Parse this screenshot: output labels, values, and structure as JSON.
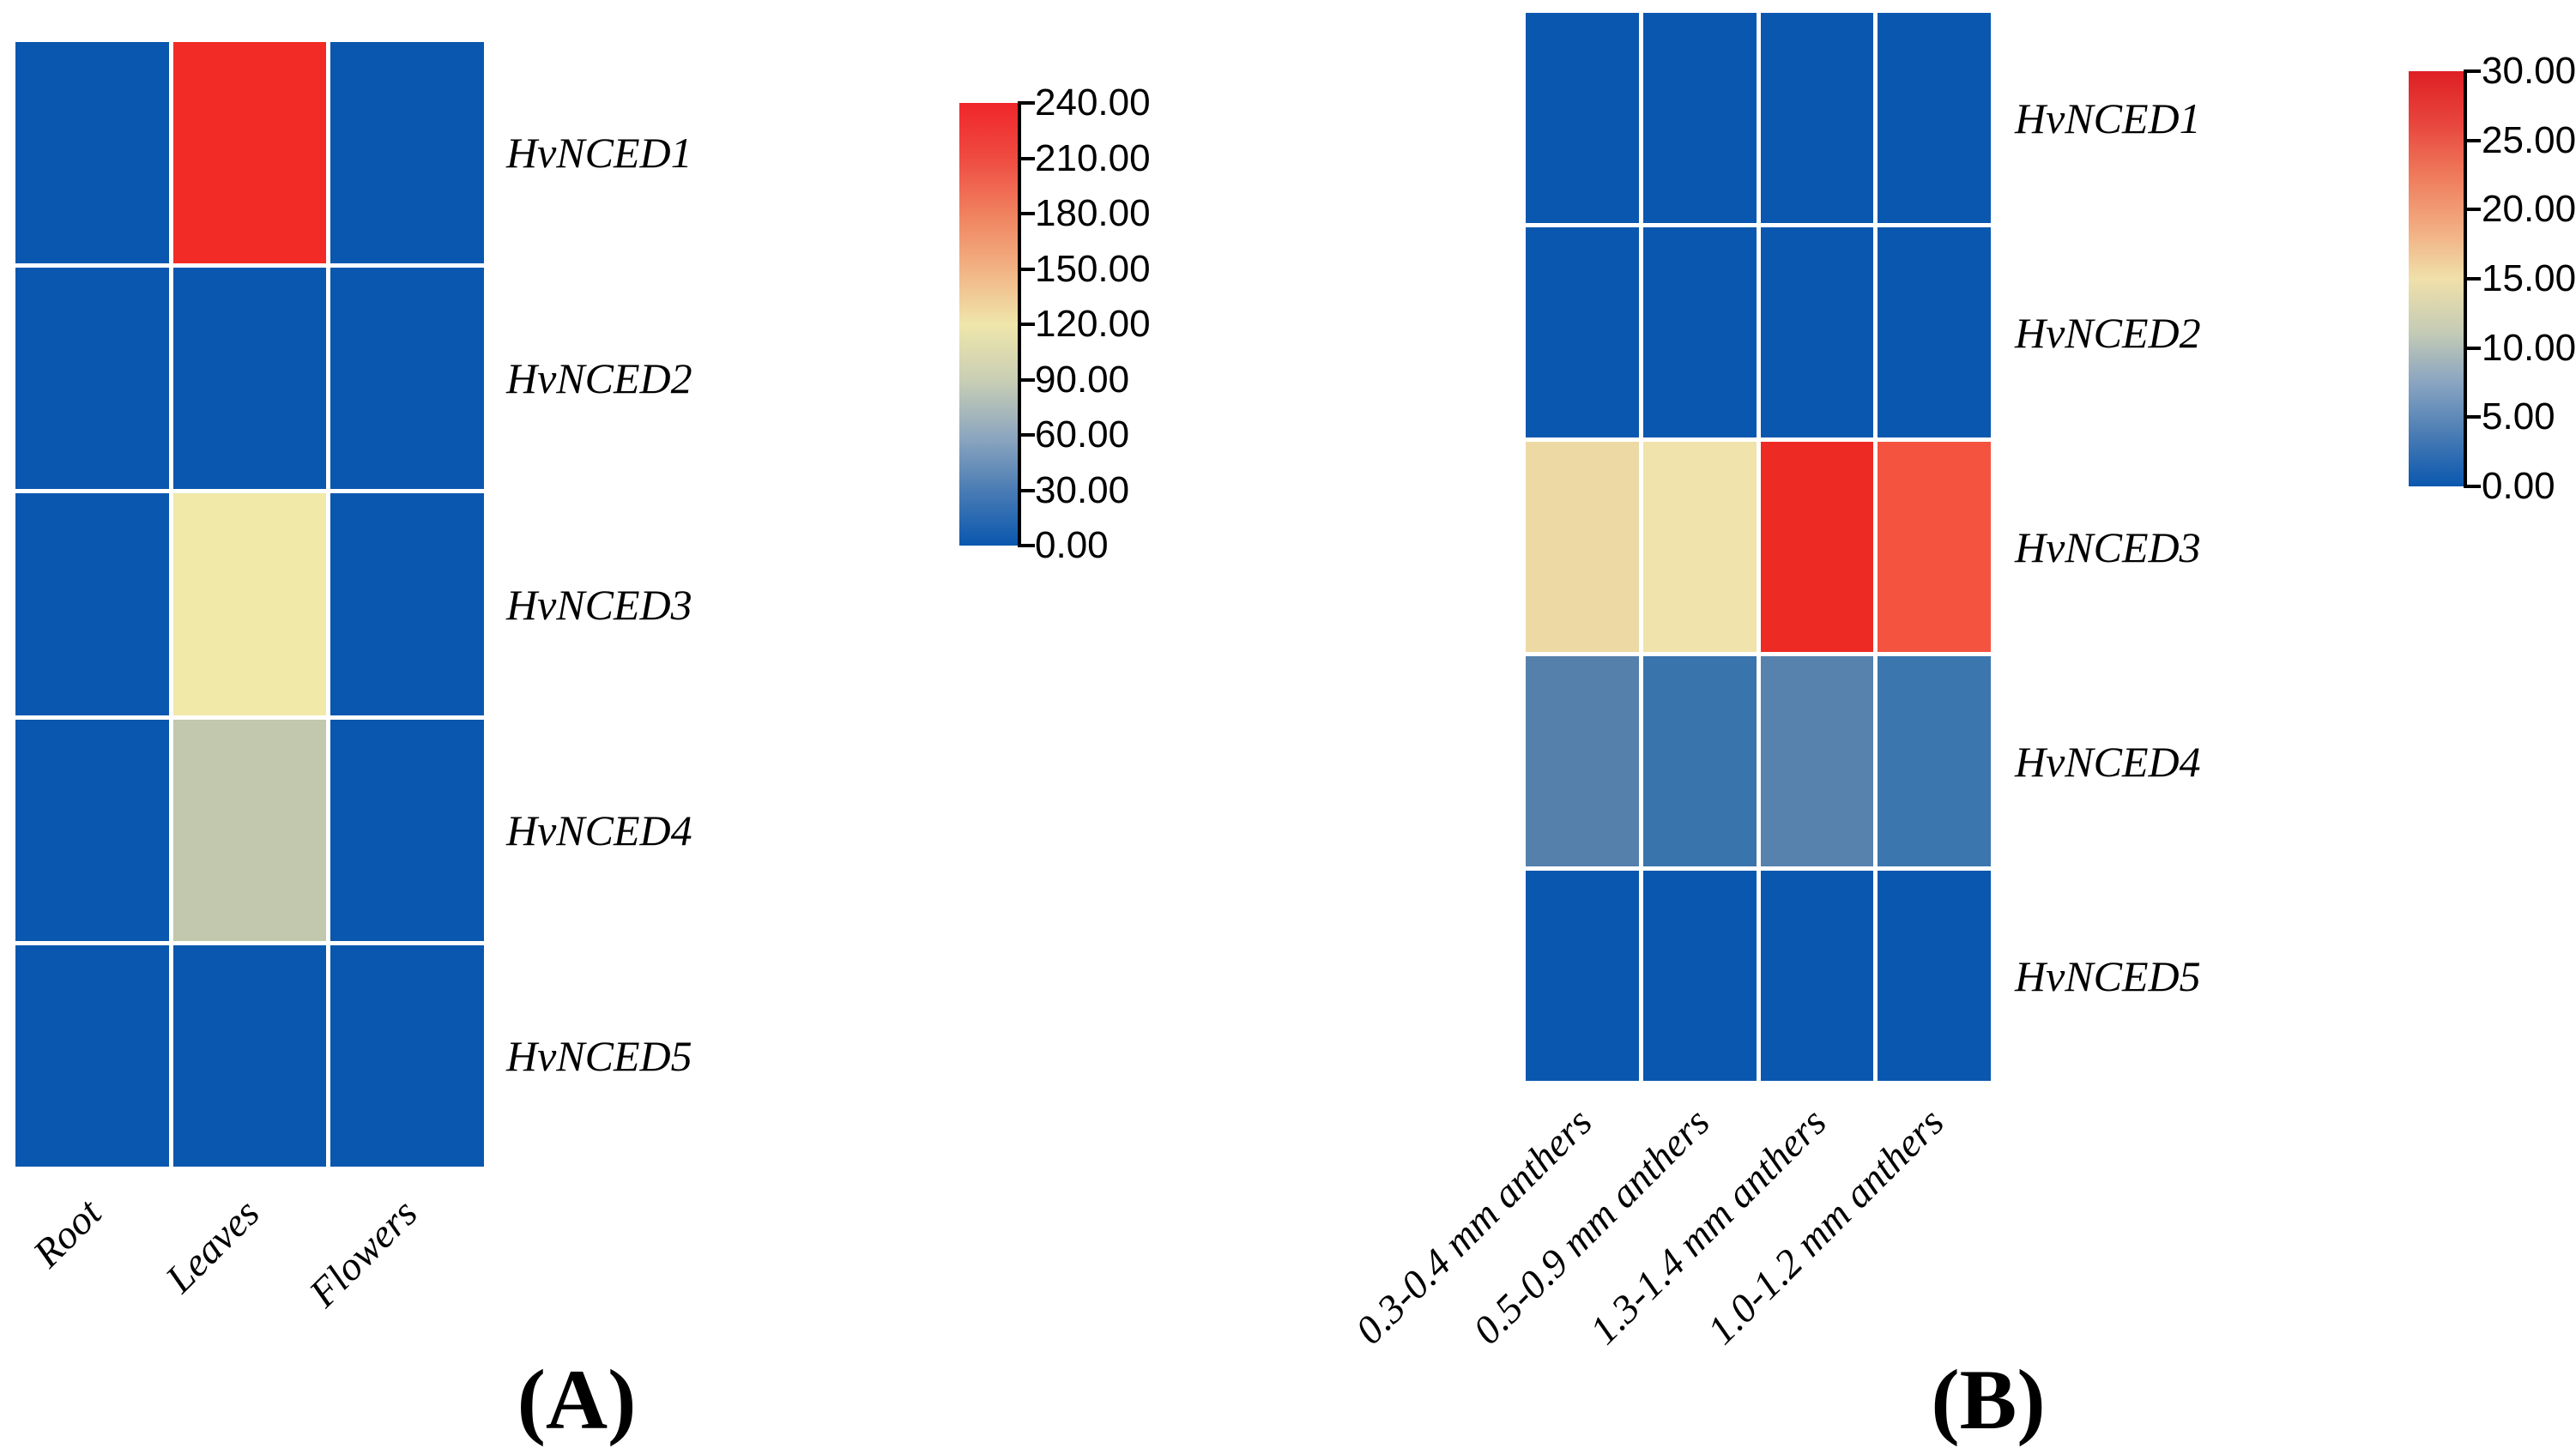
{
  "figure": {
    "panel_a": {
      "caption": "(A)",
      "row_labels": [
        "HvNCED1",
        "HvNCED2",
        "HvNCED3",
        "HvNCED4",
        "HvNCED5"
      ],
      "col_labels": [
        "Root",
        "Leaves",
        "Flowers"
      ],
      "cell_colors": [
        [
          "#0a57af",
          "#f22b26",
          "#0a57af"
        ],
        [
          "#0a57af",
          "#0a57af",
          "#0a57af"
        ],
        [
          "#0a57af",
          "#f1e9a8",
          "#0a57af"
        ],
        [
          "#0a57af",
          "#c1c8ad",
          "#0a57af"
        ],
        [
          "#0a57af",
          "#0a57af",
          "#0a57af"
        ]
      ],
      "colorbar": {
        "tick_labels": [
          "240.00",
          "210.00",
          "180.00",
          "150.00",
          "120.00",
          "90.00",
          "60.00",
          "30.00",
          "0.00"
        ],
        "gradient_top_to_bottom": [
          "#f0262a",
          "#ef4b41",
          "#f0815f",
          "#f2b283",
          "#efe6ab",
          "#c9cfb4",
          "#8fa8bf",
          "#4a7cb4",
          "#0a57af"
        ]
      }
    },
    "panel_b": {
      "caption": "(B)",
      "row_labels": [
        "HvNCED1",
        "HvNCED2",
        "HvNCED3",
        "HvNCED4",
        "HvNCED5"
      ],
      "col_labels": [
        "0.3-0.4 mm anthers",
        "0.5-0.9 mm anthers",
        "1.3-1.4 mm anthers",
        "1.0-1.2 mm anthers"
      ],
      "cell_colors": [
        [
          "#0a57af",
          "#0a57af",
          "#0a57af",
          "#0a57af"
        ],
        [
          "#0a57af",
          "#0a57af",
          "#0a57af",
          "#0a57af"
        ],
        [
          "#edd9a3",
          "#f0e3ab",
          "#ee2a24",
          "#f4533f"
        ],
        [
          "#5480ab",
          "#3a74ad",
          "#5682ad",
          "#3c76ae"
        ],
        [
          "#0a57af",
          "#0a57af",
          "#0a57af",
          "#0a57af"
        ]
      ],
      "colorbar": {
        "tick_labels": [
          "30.00",
          "25.00",
          "20.00",
          "15.00",
          "10.00",
          "5.00",
          "0.00"
        ],
        "gradient_top_to_bottom": [
          "#de1f25",
          "#e8453d",
          "#ef7a5b",
          "#f2ab80",
          "#f0e0aa",
          "#c6ccb5",
          "#8aa5c1",
          "#4a7cb4",
          "#0a57af"
        ]
      }
    },
    "colors": {
      "base_blue": "#0a57af",
      "max_red_a": "#f22b26",
      "max_red_b": "#ee2a24",
      "background": "#ffffff"
    }
  },
  "chart_data": [
    {
      "type": "heatmap",
      "panel": "A",
      "rows": [
        "HvNCED1",
        "HvNCED2",
        "HvNCED3",
        "HvNCED4",
        "HvNCED5"
      ],
      "categories": [
        "Root",
        "Leaves",
        "Flowers"
      ],
      "values": [
        [
          0,
          235,
          0
        ],
        [
          0,
          0,
          0
        ],
        [
          0,
          118,
          0
        ],
        [
          0,
          85,
          0
        ],
        [
          0,
          0,
          0
        ]
      ],
      "colorbar_range": [
        0,
        240
      ],
      "colorbar_tick_step": 30,
      "colormap": "red-cream-blue (high to low)",
      "legend_position": "right of heatmap",
      "grid": "white gaps between cells"
    },
    {
      "type": "heatmap",
      "panel": "B",
      "rows": [
        "HvNCED1",
        "HvNCED2",
        "HvNCED3",
        "HvNCED4",
        "HvNCED5"
      ],
      "categories": [
        "0.3-0.4 mm anthers",
        "0.5-0.9 mm anthers",
        "1.3-1.4 mm anthers",
        "1.0-1.2 mm anthers"
      ],
      "values": [
        [
          0,
          0,
          0,
          0
        ],
        [
          0,
          0,
          0,
          0
        ],
        [
          13.5,
          12,
          29,
          26
        ],
        [
          4,
          2.5,
          4,
          3
        ],
        [
          0,
          0,
          0,
          0
        ]
      ],
      "colorbar_range": [
        0,
        30
      ],
      "colorbar_tick_step": 5,
      "colormap": "red-cream-blue (high to low)",
      "legend_position": "right of heatmap",
      "grid": "white gaps between cells"
    }
  ]
}
